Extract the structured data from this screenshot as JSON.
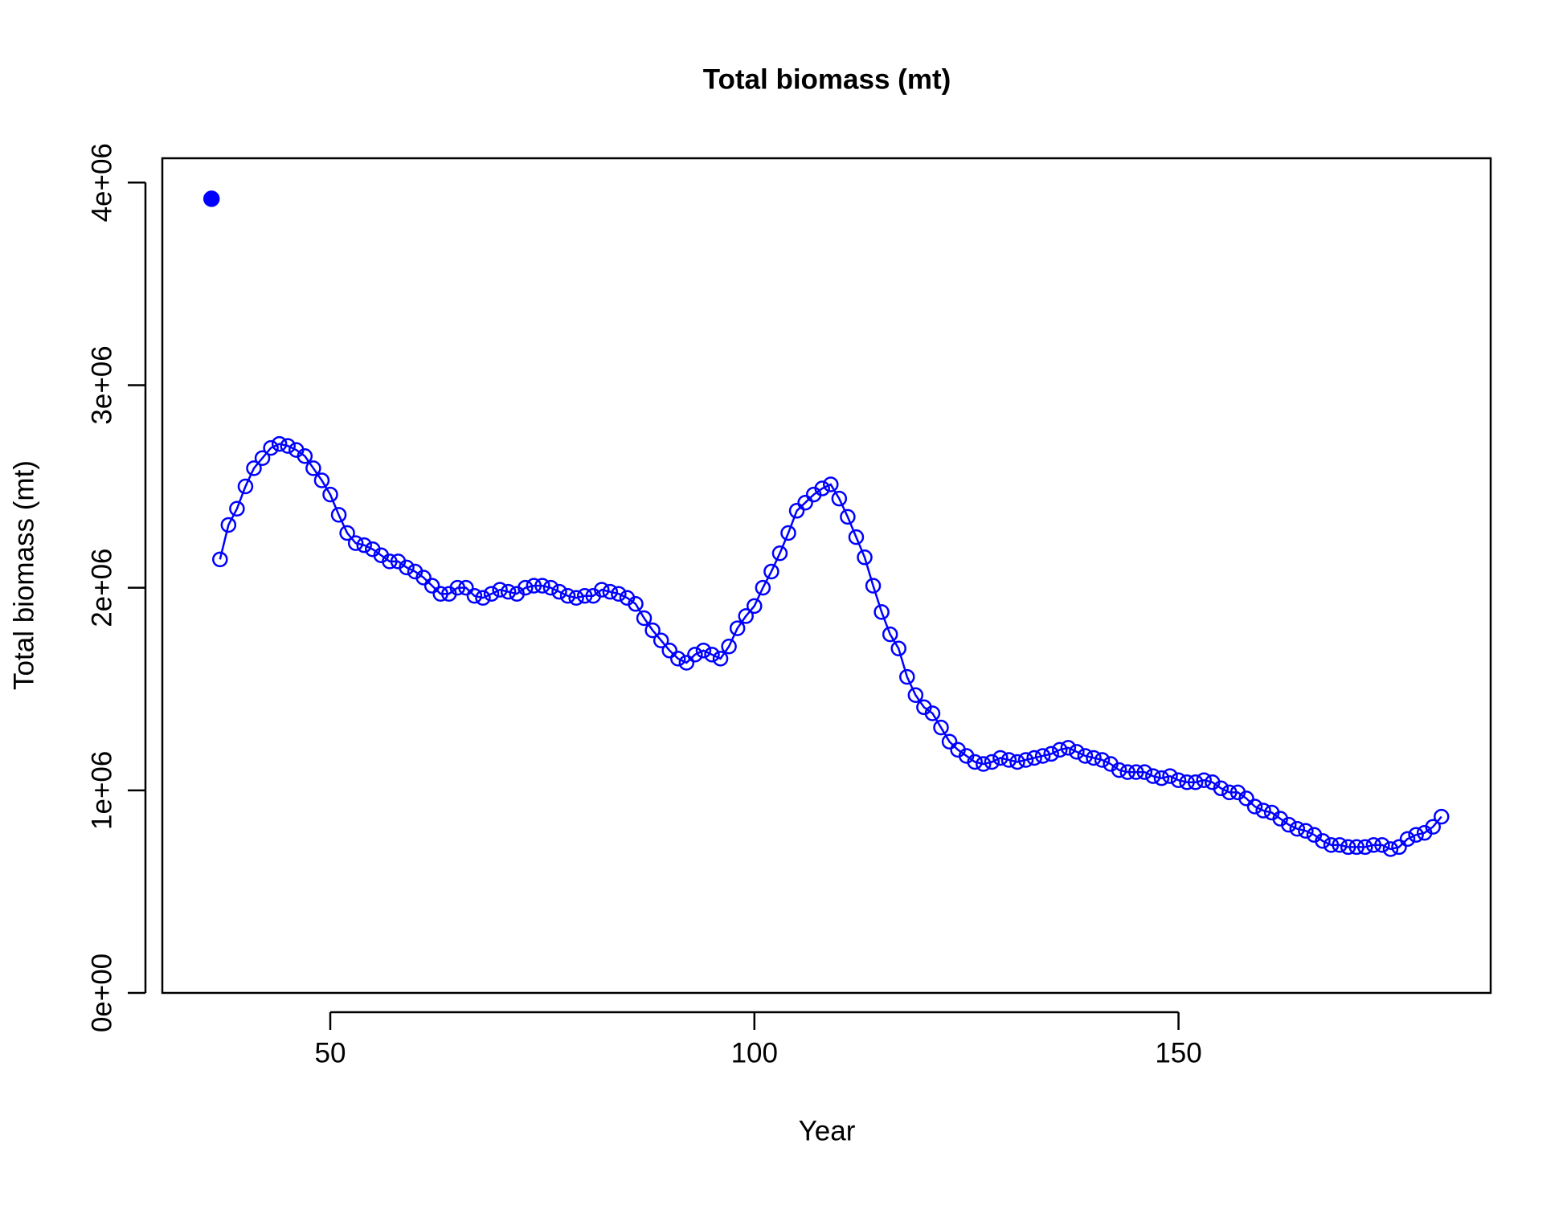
{
  "chart_data": {
    "type": "line",
    "title": "Total biomass (mt)",
    "x_label": "Year",
    "y_label": "Total biomass (mt)",
    "xlim": [
      30.2,
      186.8
    ],
    "ylim": [
      0,
      4120000
    ],
    "xticks": [
      50,
      100,
      150
    ],
    "yticks": [
      {
        "value": 0,
        "label": "0e+00"
      },
      {
        "value": 1000000,
        "label": "1e+06"
      },
      {
        "value": 2000000,
        "label": "2e+06"
      },
      {
        "value": 3000000,
        "label": "3e+06"
      },
      {
        "value": 4000000,
        "label": "4e+06"
      }
    ],
    "series": [
      {
        "color": "#0000ff",
        "marker": "filled",
        "line": false,
        "x": [
          36
        ],
        "values": [
          3920000
        ]
      },
      {
        "color": "#0000ff",
        "marker": "open",
        "line": true,
        "x": [
          37,
          38,
          39,
          40,
          41,
          42,
          43,
          44,
          45,
          46,
          47,
          48,
          49,
          50,
          51,
          52,
          53,
          54,
          55,
          56,
          57,
          58,
          59,
          60,
          61,
          62,
          63,
          64,
          65,
          66,
          67,
          68,
          69,
          70,
          71,
          72,
          73,
          74,
          75,
          76,
          77,
          78,
          79,
          80,
          81,
          82,
          83,
          84,
          85,
          86,
          87,
          88,
          89,
          90,
          91,
          92,
          93,
          94,
          95,
          96,
          97,
          98,
          99,
          100,
          101,
          102,
          103,
          104,
          105,
          106,
          107,
          108,
          109,
          110,
          111,
          112,
          113,
          114,
          115,
          116,
          117,
          118,
          119,
          120,
          121,
          122,
          123,
          124,
          125,
          126,
          127,
          128,
          129,
          130,
          131,
          132,
          133,
          134,
          135,
          136,
          137,
          138,
          139,
          140,
          141,
          142,
          143,
          144,
          145,
          146,
          147,
          148,
          149,
          150,
          151,
          152,
          153,
          154,
          155,
          156,
          157,
          158,
          159,
          160,
          161,
          162,
          163,
          164,
          165,
          166,
          167,
          168,
          169,
          170,
          171,
          172,
          173,
          174,
          175,
          176,
          177,
          178,
          179,
          180,
          181
        ],
        "values": [
          2140000,
          2310000,
          2390000,
          2500000,
          2590000,
          2640000,
          2690000,
          2710000,
          2700000,
          2680000,
          2650000,
          2590000,
          2530000,
          2460000,
          2360000,
          2270000,
          2220000,
          2210000,
          2190000,
          2160000,
          2130000,
          2130000,
          2100000,
          2080000,
          2050000,
          2010000,
          1970000,
          1970000,
          2000000,
          2000000,
          1960000,
          1950000,
          1970000,
          1990000,
          1980000,
          1970000,
          2000000,
          2010000,
          2010000,
          2000000,
          1980000,
          1960000,
          1950000,
          1960000,
          1960000,
          1990000,
          1980000,
          1970000,
          1950000,
          1920000,
          1850000,
          1790000,
          1740000,
          1690000,
          1650000,
          1630000,
          1670000,
          1690000,
          1670000,
          1650000,
          1710000,
          1800000,
          1860000,
          1910000,
          2000000,
          2080000,
          2170000,
          2270000,
          2380000,
          2420000,
          2460000,
          2490000,
          2510000,
          2440000,
          2350000,
          2250000,
          2150000,
          2010000,
          1880000,
          1770000,
          1700000,
          1560000,
          1470000,
          1410000,
          1380000,
          1310000,
          1240000,
          1200000,
          1170000,
          1140000,
          1130000,
          1140000,
          1160000,
          1150000,
          1140000,
          1150000,
          1160000,
          1170000,
          1180000,
          1200000,
          1210000,
          1190000,
          1170000,
          1160000,
          1150000,
          1130000,
          1100000,
          1090000,
          1090000,
          1090000,
          1070000,
          1060000,
          1070000,
          1050000,
          1040000,
          1040000,
          1050000,
          1040000,
          1010000,
          990000,
          990000,
          960000,
          920000,
          900000,
          890000,
          860000,
          830000,
          810000,
          800000,
          780000,
          750000,
          730000,
          730000,
          720000,
          720000,
          720000,
          730000,
          730000,
          710000,
          720000,
          760000,
          780000,
          790000,
          820000,
          870000
        ]
      }
    ]
  }
}
